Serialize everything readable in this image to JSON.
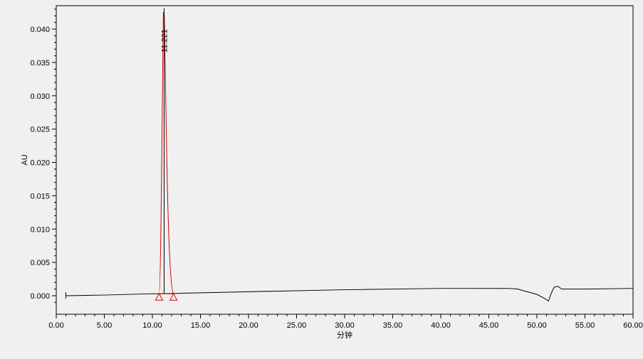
{
  "chart_data": {
    "type": "line",
    "title": "",
    "xlabel": "分钟",
    "ylabel": "AU",
    "xlim": [
      0,
      60
    ],
    "ylim": [
      -0.003,
      0.044
    ],
    "x_ticks": [
      "0.00",
      "5.00",
      "10.00",
      "15.00",
      "20.00",
      "25.00",
      "30.00",
      "35.00",
      "40.00",
      "45.00",
      "50.00",
      "55.00",
      "60.00"
    ],
    "y_ticks": [
      "0.000",
      "0.005",
      "0.010",
      "0.015",
      "0.020",
      "0.025",
      "0.030",
      "0.035",
      "0.040"
    ],
    "grid": false,
    "colors": {
      "trace": "#000000",
      "peak": "#d00000"
    },
    "series": [
      {
        "x": [
          1.0,
          5,
          10,
          10.7,
          20,
          30,
          40,
          47,
          48,
          49,
          50,
          50.8,
          51.2,
          51.5,
          51.8,
          52.2,
          52.6,
          55,
          60
        ],
        "y": [
          0.0,
          0.0001,
          0.0003,
          0.0003,
          0.0006,
          0.0009,
          0.0011,
          0.0011,
          0.001,
          0.0006,
          0.0002,
          -0.0004,
          -0.0008,
          0.0004,
          0.0013,
          0.0014,
          0.001,
          0.001,
          0.0011
        ]
      }
    ],
    "peaks": [
      {
        "label": "11.221",
        "retention_time": 11.221,
        "height": 0.0425,
        "start": 10.7,
        "end": 12.2
      }
    ]
  }
}
